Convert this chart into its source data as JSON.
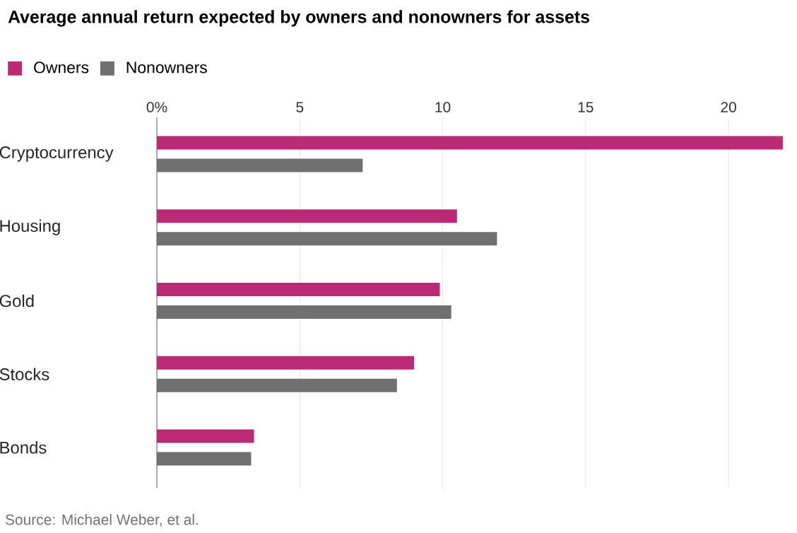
{
  "chart_data": {
    "type": "bar",
    "orientation": "horizontal",
    "title": "Average annual return expected by owners and nonowners for assets",
    "categories": [
      "Cryptocurrency",
      "Housing",
      "Gold",
      "Stocks",
      "Bonds"
    ],
    "series": [
      {
        "name": "Owners",
        "color": "#bb2a75",
        "values": [
          21.9,
          10.5,
          9.9,
          9.0,
          3.4
        ]
      },
      {
        "name": "Nonowners",
        "color": "#707070",
        "values": [
          7.2,
          11.9,
          10.3,
          8.4,
          3.3
        ]
      }
    ],
    "xlim": [
      0,
      22
    ],
    "xticks": [
      {
        "value": 0,
        "label": "0%"
      },
      5,
      10,
      15,
      20
    ],
    "grid": "x",
    "legend": "top left",
    "annotations": [
      "Source: Michael Weber, et al."
    ]
  }
}
